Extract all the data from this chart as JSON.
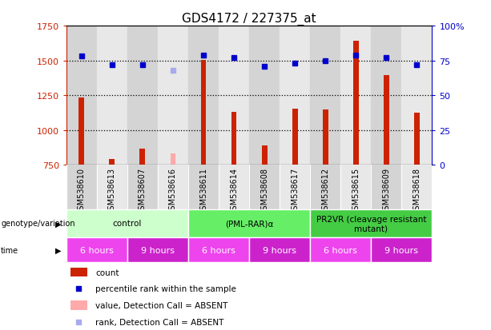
{
  "title": "GDS4172 / 227375_at",
  "samples": [
    "GSM538610",
    "GSM538613",
    "GSM538607",
    "GSM538616",
    "GSM538611",
    "GSM538614",
    "GSM538608",
    "GSM538617",
    "GSM538612",
    "GSM538615",
    "GSM538609",
    "GSM538618"
  ],
  "count_values": [
    1235,
    790,
    865,
    null,
    1505,
    1130,
    890,
    1155,
    1145,
    1640,
    1395,
    1125
  ],
  "count_absent": [
    null,
    null,
    null,
    830,
    null,
    null,
    null,
    null,
    null,
    null,
    null,
    null
  ],
  "rank_values": [
    78,
    72,
    72,
    null,
    79,
    77,
    71,
    73,
    75,
    79,
    77,
    72
  ],
  "rank_absent": [
    null,
    null,
    null,
    68,
    null,
    null,
    null,
    null,
    null,
    null,
    null,
    null
  ],
  "ylim_left": [
    750,
    1750
  ],
  "ylim_right": [
    0,
    100
  ],
  "yticks_left": [
    750,
    1000,
    1250,
    1500,
    1750
  ],
  "yticks_right": [
    0,
    25,
    50,
    75,
    100
  ],
  "ytick_labels_right": [
    "0",
    "25",
    "50",
    "75",
    "100%"
  ],
  "bar_color": "#cc2200",
  "bar_absent_color": "#ffaaaa",
  "rank_color": "#0000cc",
  "rank_absent_color": "#aaaaee",
  "grid_dotted_values": [
    1000,
    1250,
    1500
  ],
  "background_color": "#ffffff",
  "col_bg_even": "#d4d4d4",
  "col_bg_odd": "#e8e8e8",
  "genotype_groups": [
    {
      "label": "control",
      "start": 0,
      "end": 4,
      "color": "#ccffcc"
    },
    {
      "label": "(PML-RAR)α",
      "start": 4,
      "end": 8,
      "color": "#66ee66"
    },
    {
      "label": "PR2VR (cleavage resistant\nmutant)",
      "start": 8,
      "end": 12,
      "color": "#44cc44"
    }
  ],
  "time_groups": [
    {
      "label": "6 hours",
      "start": 0,
      "end": 2,
      "color": "#ee44ee"
    },
    {
      "label": "9 hours",
      "start": 2,
      "end": 4,
      "color": "#cc22cc"
    },
    {
      "label": "6 hours",
      "start": 4,
      "end": 6,
      "color": "#ee44ee"
    },
    {
      "label": "9 hours",
      "start": 6,
      "end": 8,
      "color": "#cc22cc"
    },
    {
      "label": "6 hours",
      "start": 8,
      "end": 10,
      "color": "#ee44ee"
    },
    {
      "label": "9 hours",
      "start": 10,
      "end": 12,
      "color": "#cc22cc"
    }
  ],
  "ylabel_left_color": "#cc2200",
  "ylabel_right_color": "#0000cc",
  "title_fontsize": 11,
  "tick_fontsize": 8,
  "sample_fontsize": 7,
  "legend_items": [
    {
      "label": "count",
      "color": "#cc2200",
      "type": "rect"
    },
    {
      "label": "percentile rank within the sample",
      "color": "#0000cc",
      "type": "square"
    },
    {
      "label": "value, Detection Call = ABSENT",
      "color": "#ffaaaa",
      "type": "rect"
    },
    {
      "label": "rank, Detection Call = ABSENT",
      "color": "#aaaaee",
      "type": "square"
    }
  ]
}
